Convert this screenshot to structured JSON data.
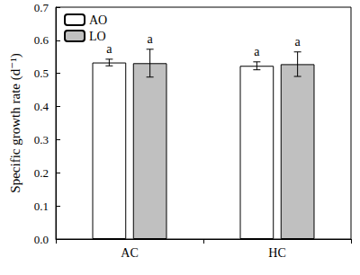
{
  "chart_data": {
    "type": "bar",
    "y_label": "Specific growth rate (d⁻¹)",
    "categories": [
      "AC",
      "HC"
    ],
    "series": [
      {
        "name": "AO",
        "color": "#ffffff",
        "values": [
          0.533,
          0.523
        ],
        "errors": [
          0.01,
          0.012
        ],
        "annotations": [
          "a",
          "a"
        ]
      },
      {
        "name": "LO",
        "color": "#c0c0c0",
        "values": [
          0.531,
          0.528
        ],
        "errors": [
          0.042,
          0.037
        ],
        "annotations": [
          "a",
          "a"
        ]
      }
    ],
    "ylim": [
      0,
      0.7
    ],
    "yticks": [
      {
        "value": 0,
        "label": "0.0"
      },
      {
        "value": 0.1,
        "label": "0.1"
      },
      {
        "value": 0.2,
        "label": "0.2"
      },
      {
        "value": 0.3,
        "label": "0.3"
      },
      {
        "value": 0.4,
        "label": "0.4"
      },
      {
        "value": 0.5,
        "label": "0.5"
      },
      {
        "value": 0.6,
        "label": "0.6"
      },
      {
        "value": 0.7,
        "label": "0.7"
      }
    ],
    "grid": false,
    "legend": "upper left"
  }
}
